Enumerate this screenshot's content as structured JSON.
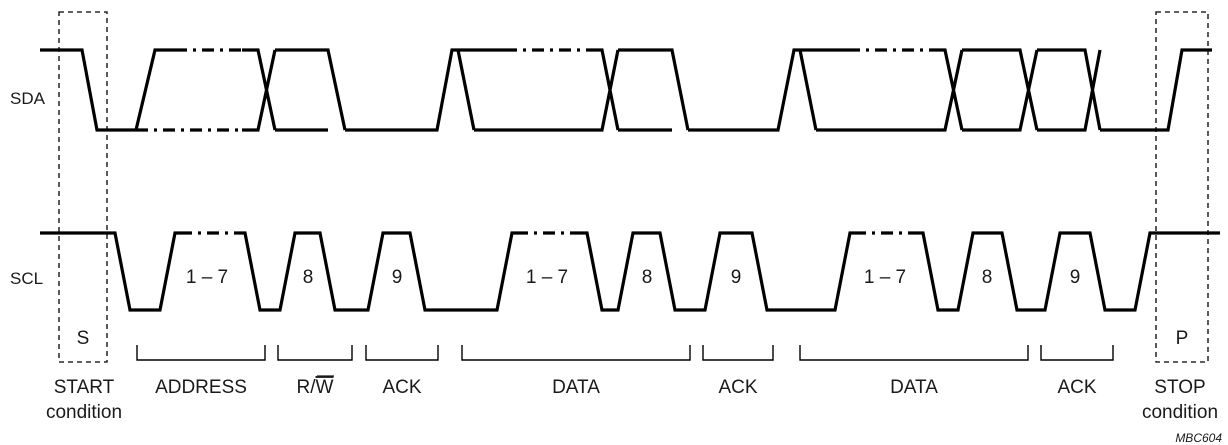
{
  "signals": {
    "sda": "SDA",
    "scl": "SCL"
  },
  "conditions": {
    "start_symbol": "S",
    "stop_symbol": "P",
    "start_line1": "START",
    "start_line2": "condition",
    "stop_line1": "STOP",
    "stop_line2": "condition"
  },
  "clock_labels": [
    "1 – 7",
    "8",
    "9",
    "1 – 7",
    "8",
    "9",
    "1 – 7",
    "8",
    "9"
  ],
  "brace_labels": [
    {
      "text": "ADDRESS"
    },
    {
      "text": "R/W",
      "part1": "R/",
      "part2": "W"
    },
    {
      "text": "ACK"
    },
    {
      "text": "DATA"
    },
    {
      "text": "ACK"
    },
    {
      "text": "DATA"
    },
    {
      "text": "ACK"
    }
  ],
  "figure_id": "MBC604"
}
